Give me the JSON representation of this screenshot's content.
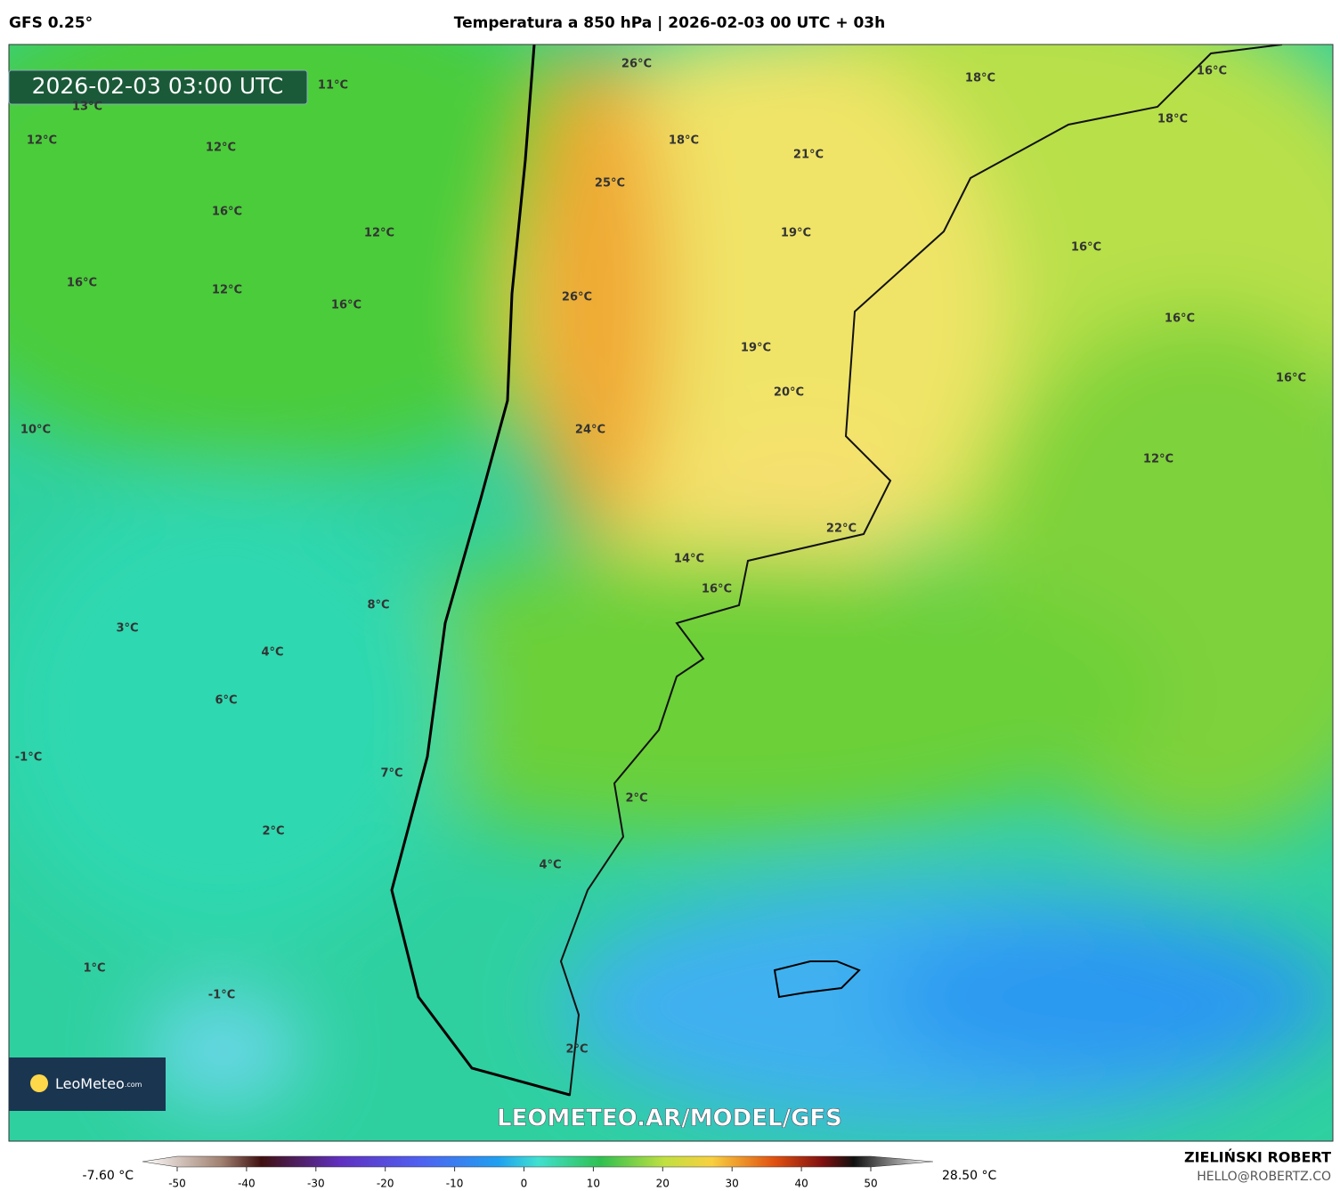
{
  "header": {
    "model": "GFS 0.25°",
    "title": "Temperatura a 850 hPa | 2026-02-03 00 UTC + 03h"
  },
  "timestamp": "2026-02-03 03:00 UTC",
  "labels": [
    "11°C",
    "13°C",
    "12°C",
    "12°C",
    "16°C",
    "12°C",
    "16°C",
    "12°C",
    "16°C",
    "10°C",
    "26°C",
    "18°C",
    "25°C",
    "26°C",
    "24°C",
    "21°C",
    "19°C",
    "19°C",
    "20°C",
    "22°C",
    "14°C",
    "16°C",
    "18°C",
    "16°C",
    "18°C",
    "16°C",
    "16°C",
    "16°C",
    "12°C",
    "8°C",
    "3°C",
    "4°C",
    "6°C",
    "-1°C",
    "7°C",
    "2°C",
    "2°C",
    "4°C",
    "1°C",
    "-1°C",
    "2°C"
  ],
  "logo": {
    "name": "LeoMeteo",
    "suffix": ".com"
  },
  "watermark": "LEOMETEO.AR/MODEL/GFS",
  "colorbar": {
    "min_label": "-7.60 °C",
    "max_label": "28.50 °C",
    "range": [
      -50,
      50
    ],
    "ticks": [
      -50,
      -40,
      -30,
      -20,
      -10,
      0,
      10,
      20,
      30,
      40,
      50
    ]
  },
  "author": {
    "name": "ZIELIŃSKI ROBERT",
    "email": "HELLO@ROBERTZ.CO"
  }
}
